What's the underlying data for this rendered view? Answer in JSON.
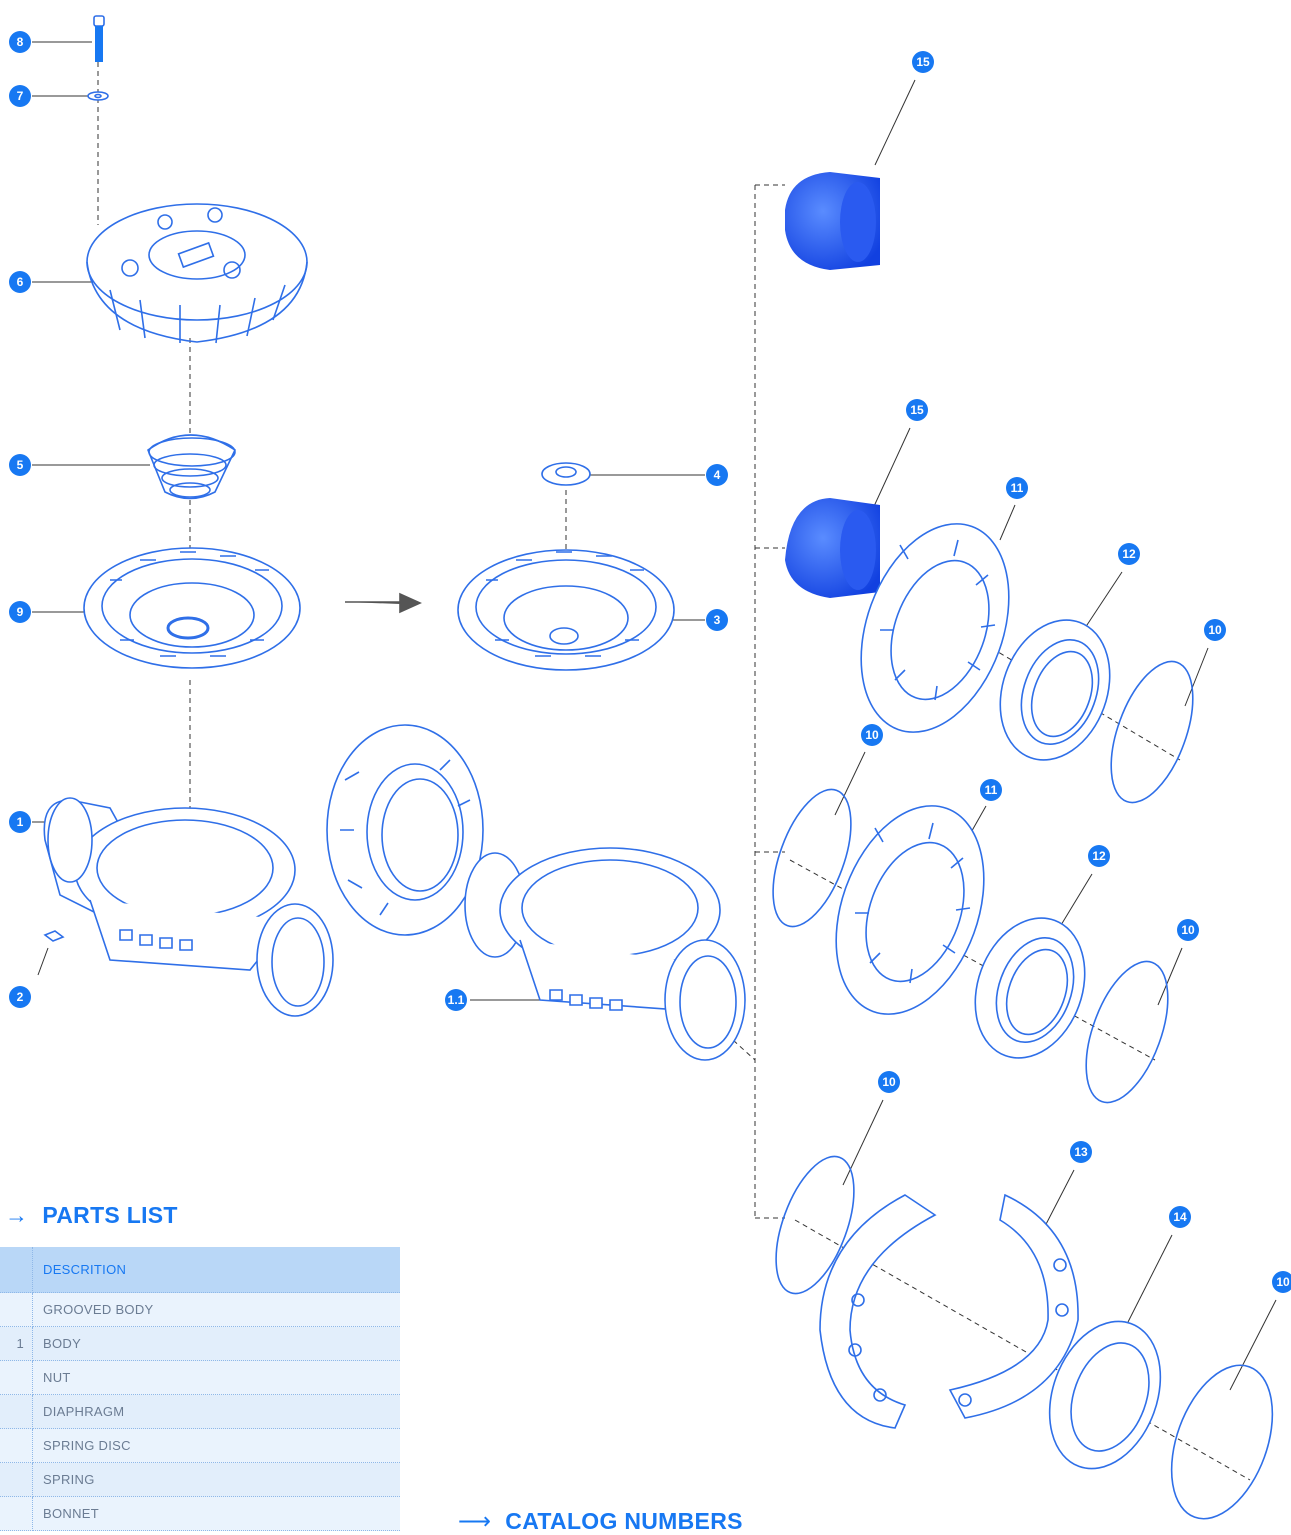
{
  "callouts": [
    "1",
    "1.1",
    "2",
    "3",
    "4",
    "5",
    "6",
    "7",
    "8",
    "9",
    "10",
    "10",
    "10",
    "10",
    "10",
    "11",
    "11",
    "12",
    "12",
    "13",
    "14",
    "15",
    "15"
  ],
  "parts_list": {
    "heading": "PARTS LIST",
    "columns": [
      "",
      "DESCRITION"
    ],
    "rows": [
      {
        "num": "",
        "desc": "GROOVED BODY"
      },
      {
        "num": "1",
        "desc": "BODY"
      },
      {
        "num": "",
        "desc": "NUT"
      },
      {
        "num": "",
        "desc": "DIAPHRAGM"
      },
      {
        "num": "",
        "desc": "SPRING DISC"
      },
      {
        "num": "",
        "desc": "SPRING"
      },
      {
        "num": "",
        "desc": "BONNET"
      }
    ]
  },
  "catalog_heading": "CATALOG NUMBERS",
  "colors": {
    "accent": "#1778f2",
    "line": "#2f6fe8",
    "table_header": "#b9d7f7"
  }
}
